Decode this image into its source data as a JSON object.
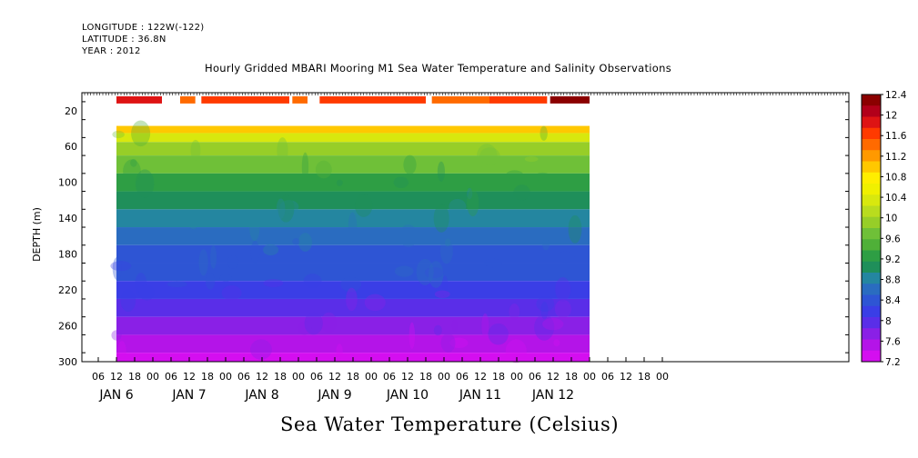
{
  "header": {
    "longitude": "LONGITUDE : 122W(-122)",
    "latitude": "LATITUDE : 36.8N",
    "year": "YEAR : 2012",
    "title": "Hourly Gridded MBARI Mooring M1 Sea Water Temperature and Salinity Observations"
  },
  "colorbar": {
    "labels": [
      "12.4",
      "12",
      "11.6",
      "11.2",
      "10.8",
      "10.4",
      "10",
      "9.6",
      "9.2",
      "8.8",
      "8.4",
      "8",
      "7.6",
      "7.2"
    ],
    "colors": [
      "#8b0000",
      "#b2001a",
      "#de1414",
      "#ff3a00",
      "#ff6a00",
      "#ff9900",
      "#ffc800",
      "#ffee00",
      "#f0f000",
      "#d8e80e",
      "#b9dc1e",
      "#97ce28",
      "#6fc038",
      "#4fb038",
      "#2e9e44",
      "#1f8f5a",
      "#2486a0",
      "#2a6cc0",
      "#2e55d4",
      "#3a3ee6",
      "#5a2ee8",
      "#8a20e6",
      "#b414e8",
      "#d40ef0"
    ]
  },
  "chart_data": {
    "type": "heatmap",
    "title": "Sea Water Temperature (Celsius)",
    "ylabel": "DEPTH (m)",
    "xlabel": "",
    "ylim": [
      300,
      0
    ],
    "yticks": [
      20,
      60,
      100,
      140,
      180,
      220,
      260,
      300
    ],
    "hour_ticks": [
      "06",
      "12",
      "18",
      "00",
      "06",
      "12",
      "18",
      "00",
      "06",
      "12",
      "18",
      "00",
      "06",
      "12",
      "18",
      "00",
      "06",
      "12",
      "18",
      "00",
      "06",
      "12",
      "18",
      "00",
      "06",
      "12",
      "18",
      "00",
      "06",
      "12",
      "18",
      "00"
    ],
    "day_labels": [
      "JAN  6",
      "JAN  7",
      "JAN  8",
      "JAN  9",
      "JAN 10",
      "JAN 11",
      "JAN 12"
    ],
    "color_scale": [
      7.2,
      12.4
    ],
    "depth_bands": [
      {
        "depth": 40,
        "temp": 10.9
      },
      {
        "depth": 50,
        "temp": 10.3
      },
      {
        "depth": 60,
        "temp": 9.9
      },
      {
        "depth": 80,
        "temp": 9.6
      },
      {
        "depth": 100,
        "temp": 9.3
      },
      {
        "depth": 120,
        "temp": 9.1
      },
      {
        "depth": 140,
        "temp": 8.9
      },
      {
        "depth": 160,
        "temp": 8.7
      },
      {
        "depth": 180,
        "temp": 8.5
      },
      {
        "depth": 200,
        "temp": 8.3
      },
      {
        "depth": 220,
        "temp": 8.1
      },
      {
        "depth": 240,
        "temp": 7.95
      },
      {
        "depth": 260,
        "temp": 7.8
      },
      {
        "depth": 280,
        "temp": 7.6
      },
      {
        "depth": 300,
        "temp": 7.3
      }
    ],
    "surface_segments": [
      {
        "start": "JAN 6 12",
        "end": "JAN 7 03",
        "temp": 11.8
      },
      {
        "start": "JAN 7 09",
        "end": "JAN 7 14",
        "temp": 11.4
      },
      {
        "start": "JAN 7 16",
        "end": "JAN 8 21",
        "temp": 11.6
      },
      {
        "start": "JAN 8 22",
        "end": "JAN 9 03",
        "temp": 11.4
      },
      {
        "start": "JAN 9 07",
        "end": "JAN 10 18",
        "temp": 11.7
      },
      {
        "start": "JAN 10 20",
        "end": "JAN 11 15",
        "temp": 11.5
      },
      {
        "start": "JAN 11 15",
        "end": "JAN 12 10",
        "temp": 11.6
      },
      {
        "start": "JAN 12 11",
        "end": "JAN 12 24",
        "temp": 12.4
      }
    ]
  }
}
